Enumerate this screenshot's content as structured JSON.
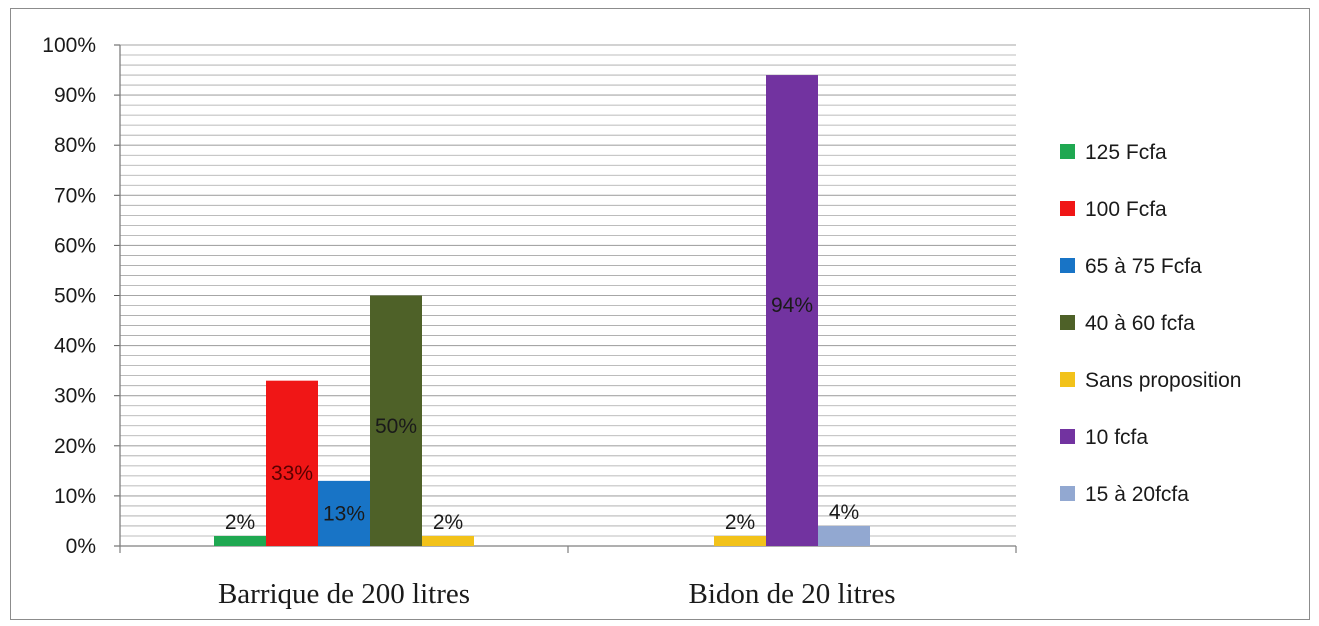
{
  "chart_data": {
    "type": "bar",
    "categories": [
      "Barrique de 200 litres",
      "Bidon de 20 litres"
    ],
    "ylim": [
      0,
      100
    ],
    "y_ticks": [
      "0%",
      "10%",
      "20%",
      "30%",
      "40%",
      "50%",
      "60%",
      "70%",
      "80%",
      "90%",
      "100%"
    ],
    "grid": true,
    "legend_position": "right",
    "series": [
      {
        "name": "125 Fcfa",
        "color": "#1fa851",
        "values": [
          2,
          null
        ],
        "labels": [
          "2%",
          ""
        ]
      },
      {
        "name": "100 Fcfa",
        "color": "#f01616",
        "values": [
          33,
          null
        ],
        "labels": [
          "33%",
          ""
        ]
      },
      {
        "name": "65 à 75 Fcfa",
        "color": "#1874c6",
        "values": [
          13,
          null
        ],
        "labels": [
          "13%",
          ""
        ]
      },
      {
        "name": "40 à 60 fcfa",
        "color": "#4e6128",
        "values": [
          50,
          null
        ],
        "labels": [
          "50%",
          ""
        ]
      },
      {
        "name": "Sans proposition",
        "color": "#f2c21a",
        "values": [
          2,
          2
        ],
        "labels": [
          "2%",
          "2%"
        ]
      },
      {
        "name": "10 fcfa",
        "color": "#7233a0",
        "values": [
          null,
          94
        ],
        "labels": [
          "",
          "94%"
        ]
      },
      {
        "name": "15 à 20fcfa",
        "color": "#92a8d1",
        "values": [
          null,
          4
        ],
        "labels": [
          "",
          "4%"
        ]
      }
    ]
  }
}
